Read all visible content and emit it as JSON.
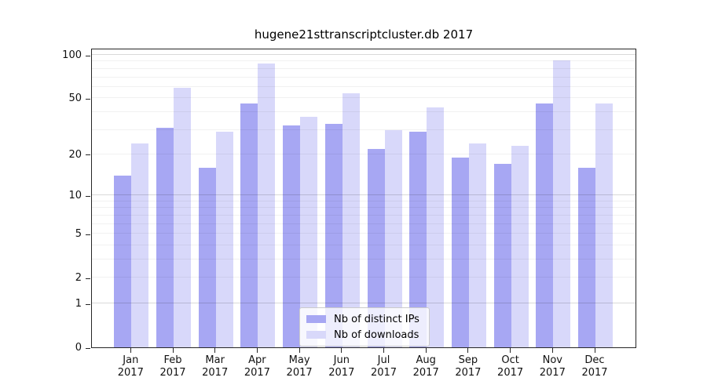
{
  "chart_data": {
    "type": "bar",
    "title": "hugene21sttranscriptcluster.db 2017",
    "year": "2017",
    "categories": [
      "Jan",
      "Feb",
      "Mar",
      "Apr",
      "May",
      "Jun",
      "Jul",
      "Aug",
      "Sep",
      "Oct",
      "Nov",
      "Dec"
    ],
    "series": [
      {
        "name": "Nb of distinct IPs",
        "color": "#a7a7f3",
        "values": [
          14,
          31,
          16,
          46,
          32,
          33,
          22,
          29,
          19,
          17,
          46,
          16
        ]
      },
      {
        "name": "Nb of downloads",
        "color": "#d8d8fa",
        "values": [
          24,
          59,
          29,
          87,
          37,
          54,
          30,
          43,
          24,
          23,
          92,
          46
        ]
      }
    ],
    "yticks": [
      100,
      50,
      20,
      10,
      5,
      2,
      1,
      0
    ],
    "yscale": "log1p",
    "ylim": [
      0,
      105
    ],
    "grid": "horizontal",
    "legend_position": "lower-center-inside"
  }
}
